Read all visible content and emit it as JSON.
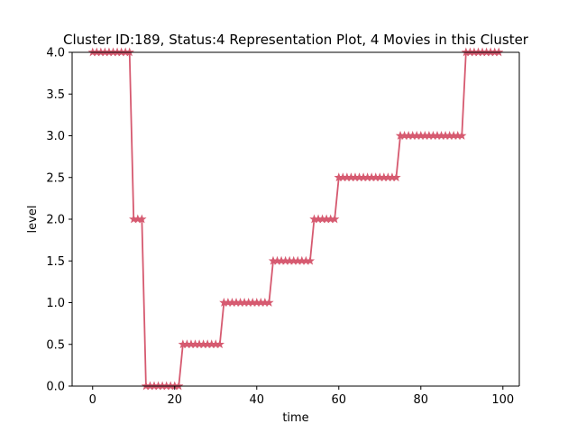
{
  "chart_data": {
    "type": "line",
    "title": "Cluster ID:189, Status:4 Representation Plot, 4 Movies in this Cluster",
    "xlabel": "time",
    "ylabel": "level",
    "xlim": [
      -5,
      104
    ],
    "ylim": [
      0,
      4
    ],
    "xticks": [
      0,
      20,
      40,
      60,
      80,
      100
    ],
    "yticks": [
      0.0,
      0.5,
      1.0,
      1.5,
      2.0,
      2.5,
      3.0,
      3.5,
      4.0
    ],
    "xtick_labels": [
      "0",
      "20",
      "40",
      "60",
      "80",
      "100"
    ],
    "ytick_labels": [
      "0.0",
      "0.5",
      "1.0",
      "1.5",
      "2.0",
      "2.5",
      "3.0",
      "3.5",
      "4.0"
    ],
    "grid": false,
    "series": [
      {
        "color": "#d65a70",
        "marker": "star",
        "x": [
          0,
          1,
          2,
          3,
          4,
          5,
          6,
          7,
          8,
          9,
          10,
          11,
          12,
          13,
          14,
          15,
          16,
          17,
          18,
          19,
          20,
          21,
          22,
          23,
          24,
          25,
          26,
          27,
          28,
          29,
          30,
          31,
          32,
          33,
          34,
          35,
          36,
          37,
          38,
          39,
          40,
          41,
          42,
          43,
          44,
          45,
          46,
          47,
          48,
          49,
          50,
          51,
          52,
          53,
          54,
          55,
          56,
          57,
          58,
          59,
          60,
          61,
          62,
          63,
          64,
          65,
          66,
          67,
          68,
          69,
          70,
          71,
          72,
          73,
          74,
          75,
          76,
          77,
          78,
          79,
          80,
          81,
          82,
          83,
          84,
          85,
          86,
          87,
          88,
          89,
          90,
          91,
          92,
          93,
          94,
          95,
          96,
          97,
          98,
          99
        ],
        "y": [
          4,
          4,
          4,
          4,
          4,
          4,
          4,
          4,
          4,
          4,
          2,
          2,
          2,
          0,
          0,
          0,
          0,
          0,
          0,
          0,
          0,
          0,
          0.5,
          0.5,
          0.5,
          0.5,
          0.5,
          0.5,
          0.5,
          0.5,
          0.5,
          0.5,
          1,
          1,
          1,
          1,
          1,
          1,
          1,
          1,
          1,
          1,
          1,
          1,
          1.5,
          1.5,
          1.5,
          1.5,
          1.5,
          1.5,
          1.5,
          1.5,
          1.5,
          1.5,
          2,
          2,
          2,
          2,
          2,
          2,
          2.5,
          2.5,
          2.5,
          2.5,
          2.5,
          2.5,
          2.5,
          2.5,
          2.5,
          2.5,
          2.5,
          2.5,
          2.5,
          2.5,
          2.5,
          3,
          3,
          3,
          3,
          3,
          3,
          3,
          3,
          3,
          3,
          3,
          3,
          3,
          3,
          3,
          3,
          4,
          4,
          4,
          4,
          4,
          4,
          4,
          4,
          4
        ]
      }
    ]
  }
}
